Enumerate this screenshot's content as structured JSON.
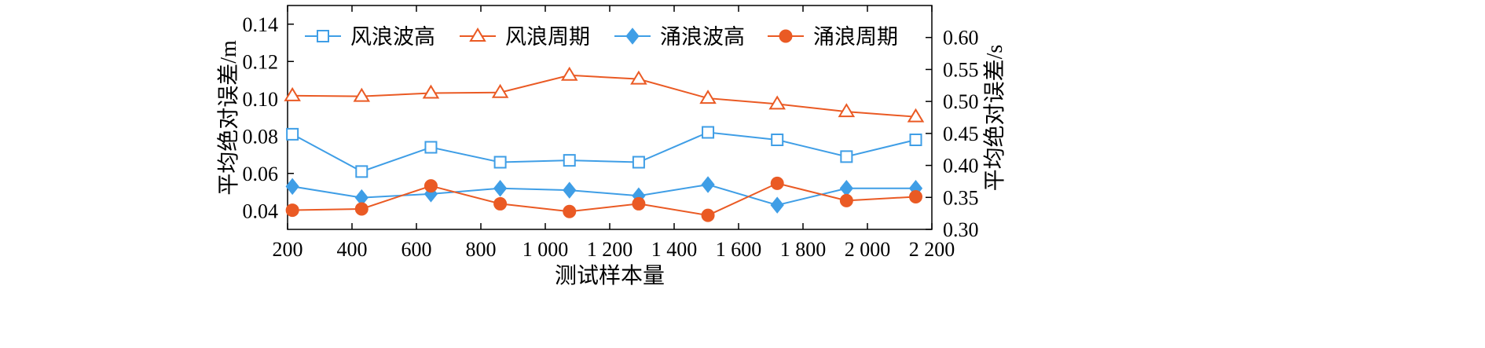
{
  "chart_data": {
    "type": "line",
    "xlabel": "测试样本量",
    "ylabel_left": "平均绝对误差/m",
    "ylabel_right": "平均绝对误差/s",
    "xlim": [
      200,
      2200
    ],
    "ylim_left": [
      0.03,
      0.15
    ],
    "ylim_right": [
      0.3,
      0.65
    ],
    "x_ticks": [
      200,
      400,
      600,
      800,
      1000,
      1200,
      1400,
      1600,
      1800,
      2000,
      2200
    ],
    "x_tick_labels": [
      "200",
      "400",
      "600",
      "800",
      "1 000",
      "1 200",
      "1 400",
      "1 600",
      "1 800",
      "2 000",
      "2 200"
    ],
    "y_left_ticks": [
      0.04,
      0.06,
      0.08,
      0.1,
      0.12,
      0.14
    ],
    "y_left_tick_labels": [
      "0.04",
      "0.06",
      "0.08",
      "0.10",
      "0.12",
      "0.14"
    ],
    "y_right_ticks": [
      0.3,
      0.35,
      0.4,
      0.45,
      0.5,
      0.55,
      0.6
    ],
    "y_right_tick_labels": [
      "0.30",
      "0.35",
      "0.40",
      "0.45",
      "0.50",
      "0.55",
      "0.60"
    ],
    "x": [
      215,
      430,
      645,
      860,
      1075,
      1290,
      1505,
      1720,
      1935,
      2150
    ],
    "legend_position": "top",
    "grid": false,
    "series": [
      {
        "name": "风浪波高",
        "axis": "left",
        "color": "#3f9ee6",
        "marker": "square-open",
        "values": [
          0.081,
          0.061,
          0.074,
          0.066,
          0.067,
          0.066,
          0.082,
          0.078,
          0.069,
          0.078
        ]
      },
      {
        "name": "风浪周期",
        "axis": "right",
        "color": "#ea5a24",
        "marker": "triangle-open",
        "values": [
          0.509,
          0.508,
          0.513,
          0.514,
          0.541,
          0.535,
          0.505,
          0.496,
          0.484,
          0.476
        ]
      },
      {
        "name": "涌浪波高",
        "axis": "left",
        "color": "#3f9ee6",
        "marker": "diamond-filled",
        "values": [
          0.053,
          0.047,
          0.049,
          0.052,
          0.051,
          0.048,
          0.054,
          0.043,
          0.052,
          0.052
        ]
      },
      {
        "name": "涌浪周期",
        "axis": "right",
        "color": "#ea5a24",
        "marker": "circle-filled",
        "values": [
          0.33,
          0.332,
          0.368,
          0.34,
          0.328,
          0.34,
          0.322,
          0.372,
          0.345,
          0.351
        ]
      }
    ]
  }
}
